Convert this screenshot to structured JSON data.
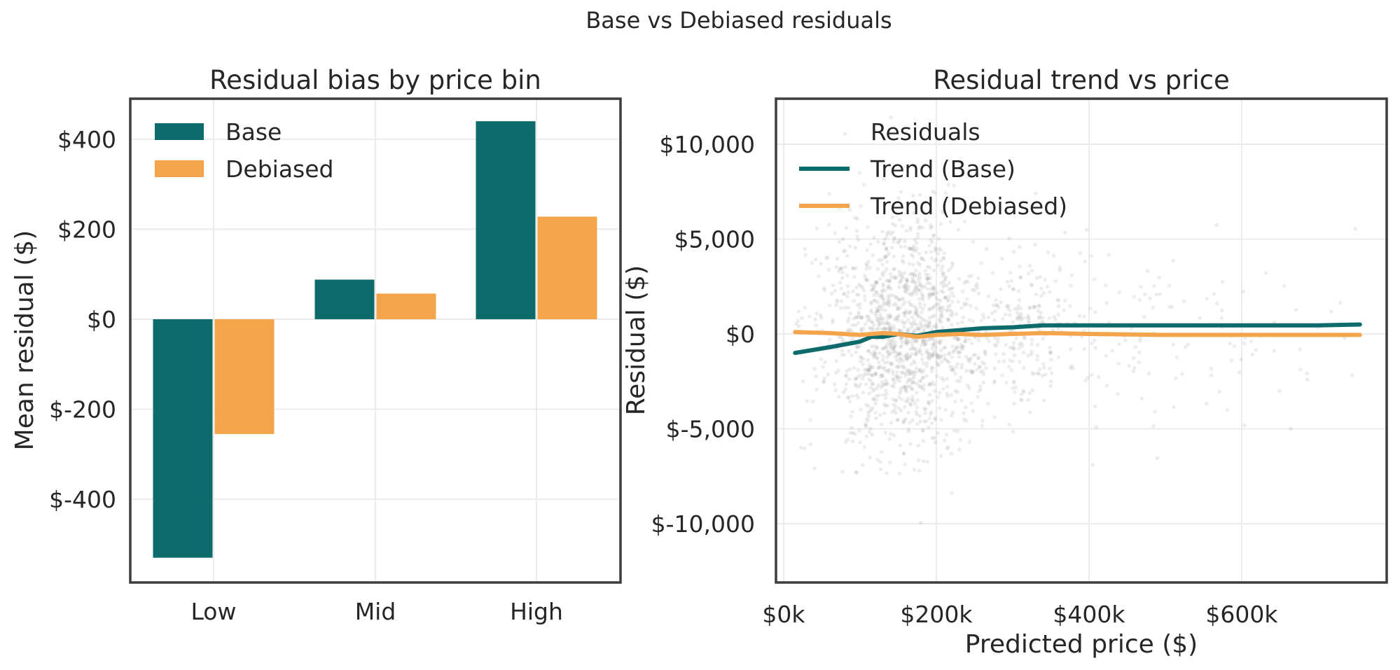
{
  "figure": {
    "suptitle": "Base vs Debiased residuals"
  },
  "chart_data": [
    {
      "type": "bar",
      "title": "Residual bias by price bin",
      "xlabel": "",
      "ylabel": "Mean residual ($)",
      "categories": [
        "Low",
        "Mid",
        "High"
      ],
      "series": [
        {
          "name": "Base",
          "values": [
            -530,
            88,
            440
          ],
          "color": "#0d6b6b"
        },
        {
          "name": "Debiased",
          "values": [
            -255,
            57,
            228
          ],
          "color": "#f4a44b"
        }
      ],
      "ylim": [
        -585,
        490
      ],
      "yticks": [
        400,
        200,
        0,
        -200,
        -400
      ],
      "ytick_labels": [
        "$400",
        "$200",
        "$0",
        "$-200",
        "$-400"
      ],
      "legend": "upper-left",
      "grid": true
    },
    {
      "type": "scatter",
      "title": "Residual trend vs price",
      "xlabel": "Predicted price ($)",
      "ylabel": "Residual ($)",
      "xlim": [
        -10000,
        790000
      ],
      "ylim": [
        -13100,
        12400
      ],
      "xticks": [
        0,
        200000,
        400000,
        600000
      ],
      "xtick_labels": [
        "$0k",
        "$200k",
        "$400k",
        "$600k"
      ],
      "yticks": [
        10000,
        5000,
        0,
        -5000,
        -10000
      ],
      "ytick_labels": [
        "$10,000",
        "$5,000",
        "$0",
        "$-5,000",
        "$-10,000"
      ],
      "legend": "upper-left",
      "grid": true,
      "scatter_series": {
        "name": "Residuals",
        "color": "#8c8c8c"
      },
      "series": [
        {
          "name": "Trend (Base)",
          "color": "#0d6b6b",
          "x": [
            15000,
            60000,
            100000,
            115000,
            130000,
            150000,
            175000,
            200000,
            230000,
            260000,
            300000,
            340000,
            400000,
            500000,
            600000,
            700000,
            755000
          ],
          "y": [
            -1000,
            -700,
            -400,
            -150,
            -150,
            0,
            -100,
            100,
            200,
            300,
            350,
            450,
            450,
            450,
            450,
            450,
            500
          ]
        },
        {
          "name": "Trend (Debiased)",
          "color": "#f4a44b",
          "x": [
            15000,
            60000,
            100000,
            115000,
            130000,
            150000,
            175000,
            200000,
            230000,
            260000,
            300000,
            340000,
            400000,
            500000,
            600000,
            700000,
            755000
          ],
          "y": [
            100,
            50,
            -50,
            0,
            50,
            0,
            -150,
            -50,
            0,
            -50,
            0,
            50,
            0,
            -50,
            -50,
            -50,
            -50
          ]
        }
      ]
    }
  ]
}
